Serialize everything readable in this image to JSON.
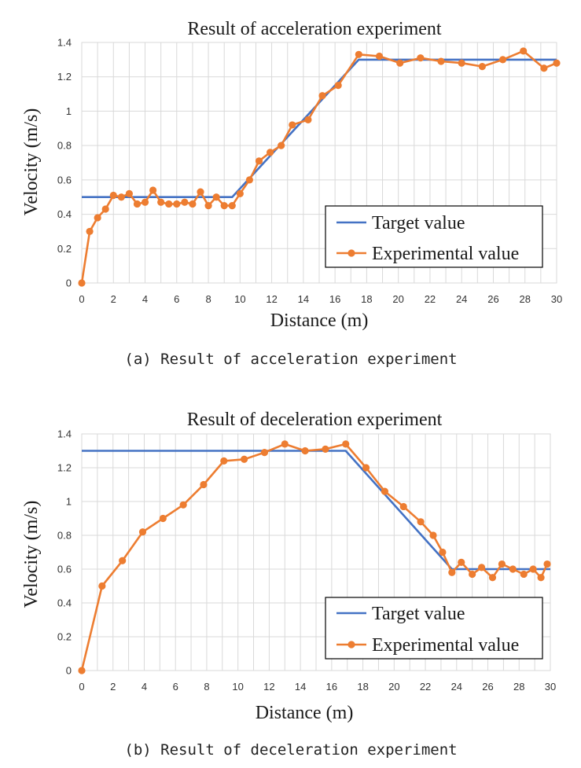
{
  "colors": {
    "target": "#4472c4",
    "experimental": "#ed7d31",
    "grid": "#d9d9d9"
  },
  "chart_data": [
    {
      "type": "line",
      "title": "Result of acceleration experiment",
      "xlabel": "Distance (m)",
      "ylabel": "Velocity (m/s)",
      "xlim": [
        0,
        30
      ],
      "ylim": [
        0,
        1.4
      ],
      "x_ticks": [
        "0",
        "2",
        "4",
        "6",
        "8",
        "10",
        "12",
        "14",
        "16",
        "18",
        "20",
        "22",
        "24",
        "26",
        "28",
        "30"
      ],
      "y_ticks": [
        "0",
        "0.2",
        "0.4",
        "0.6",
        "0.8",
        "1",
        "1.2",
        "1.4"
      ],
      "grid": true,
      "legend_position": "bottom-right",
      "caption": "(a) Result of acceleration experiment",
      "series": [
        {
          "name": "Target value",
          "marker": false,
          "x": [
            0,
            9.5,
            17.5,
            30
          ],
          "y": [
            0.5,
            0.5,
            1.3,
            1.3
          ]
        },
        {
          "name": "Experimental value",
          "marker": true,
          "x": [
            0,
            0.5,
            1.0,
            1.5,
            2.0,
            2.5,
            3.0,
            3.5,
            4.0,
            4.5,
            5.0,
            5.5,
            6.0,
            6.5,
            7.0,
            7.5,
            8.0,
            8.5,
            9.0,
            9.5,
            10.0,
            10.6,
            11.2,
            11.9,
            12.6,
            13.3,
            14.3,
            15.2,
            16.2,
            17.5,
            18.8,
            20.1,
            21.4,
            22.7,
            24.0,
            25.3,
            26.6,
            27.9,
            29.2,
            30.0
          ],
          "y": [
            0,
            0.3,
            0.38,
            0.43,
            0.51,
            0.5,
            0.52,
            0.46,
            0.47,
            0.54,
            0.47,
            0.46,
            0.46,
            0.47,
            0.46,
            0.53,
            0.45,
            0.5,
            0.45,
            0.45,
            0.52,
            0.6,
            0.71,
            0.76,
            0.8,
            0.92,
            0.95,
            1.09,
            1.15,
            1.33,
            1.32,
            1.28,
            1.31,
            1.29,
            1.28,
            1.26,
            1.3,
            1.35,
            1.25,
            1.28
          ]
        }
      ]
    },
    {
      "type": "line",
      "title": "Result of deceleration experiment",
      "xlabel": "Distance (m)",
      "ylabel": "Velocity (m/s)",
      "xlim": [
        0,
        30
      ],
      "ylim": [
        0,
        1.4
      ],
      "x_ticks": [
        "0",
        "2",
        "4",
        "6",
        "8",
        "10",
        "12",
        "14",
        "16",
        "18",
        "20",
        "22",
        "24",
        "26",
        "28",
        "30"
      ],
      "y_ticks": [
        "0",
        "0.2",
        "0.4",
        "0.6",
        "0.8",
        "1",
        "1.2",
        "1.4"
      ],
      "grid": true,
      "legend_position": "bottom-right",
      "caption": "(b) Result of deceleration experiment",
      "series": [
        {
          "name": "Target value",
          "marker": false,
          "x": [
            0,
            16.9,
            23.7,
            30
          ],
          "y": [
            1.3,
            1.3,
            0.6,
            0.6
          ]
        },
        {
          "name": "Experimental value",
          "marker": true,
          "x": [
            0,
            1.3,
            2.6,
            3.9,
            5.2,
            6.5,
            7.8,
            9.1,
            10.4,
            11.7,
            13.0,
            14.3,
            15.6,
            16.9,
            18.2,
            19.4,
            20.6,
            21.7,
            22.5,
            23.1,
            23.7,
            24.3,
            25.0,
            25.6,
            26.3,
            26.9,
            27.6,
            28.3,
            28.9,
            29.4,
            29.8
          ],
          "y": [
            0,
            0.5,
            0.65,
            0.82,
            0.9,
            0.98,
            1.1,
            1.24,
            1.25,
            1.29,
            1.34,
            1.3,
            1.31,
            1.34,
            1.2,
            1.06,
            0.97,
            0.88,
            0.8,
            0.7,
            0.58,
            0.64,
            0.57,
            0.61,
            0.55,
            0.63,
            0.6,
            0.57,
            0.6,
            0.55,
            0.63
          ]
        }
      ]
    }
  ]
}
